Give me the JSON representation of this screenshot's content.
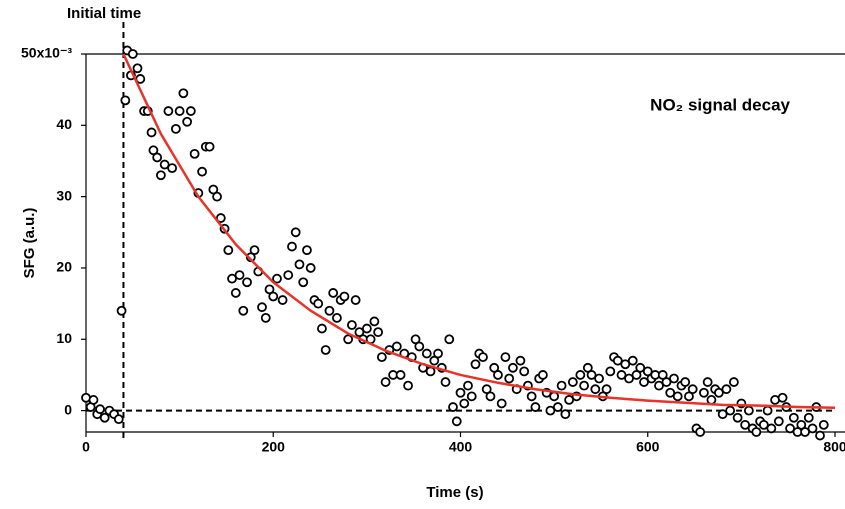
{
  "chart_data": {
    "type": "scatter",
    "xlabel": "Time (s)",
    "ylabel": "SFG (a.u.)",
    "annotations": [
      {
        "text": "Initial time",
        "x": 40
      },
      {
        "text": "NO₂ signal decay"
      }
    ],
    "hline": 0,
    "xlim": [
      0,
      800
    ],
    "ylim": [
      -3,
      50
    ],
    "xticks": [
      0,
      200,
      400,
      600,
      800
    ],
    "yticks": [
      0,
      10,
      20,
      30,
      40,
      {
        "value": 50,
        "label": "50x10⁻³"
      }
    ],
    "series": [
      {
        "type": "scatter",
        "color": "#000000",
        "x": [
          0,
          5,
          8,
          12,
          15,
          20,
          25,
          30,
          35,
          38,
          42,
          44,
          48,
          50,
          55,
          58,
          62,
          66,
          70,
          72,
          76,
          80,
          84,
          88,
          92,
          96,
          100,
          104,
          108,
          112,
          116,
          120,
          124,
          128,
          132,
          136,
          140,
          144,
          148,
          152,
          156,
          160,
          164,
          168,
          172,
          176,
          180,
          184,
          188,
          192,
          196,
          200,
          204,
          210,
          216,
          220,
          224,
          228,
          232,
          236,
          240,
          244,
          248,
          252,
          256,
          260,
          264,
          268,
          272,
          276,
          280,
          284,
          288,
          292,
          296,
          300,
          304,
          308,
          312,
          316,
          320,
          324,
          328,
          332,
          336,
          340,
          344,
          348,
          352,
          356,
          360,
          364,
          368,
          372,
          376,
          380,
          384,
          388,
          392,
          396,
          400,
          404,
          408,
          412,
          416,
          420,
          424,
          428,
          432,
          436,
          440,
          444,
          448,
          452,
          456,
          460,
          464,
          468,
          472,
          476,
          480,
          484,
          488,
          492,
          496,
          500,
          504,
          508,
          512,
          516,
          520,
          524,
          528,
          532,
          536,
          540,
          544,
          548,
          552,
          556,
          560,
          564,
          568,
          572,
          576,
          580,
          584,
          588,
          592,
          596,
          600,
          604,
          608,
          612,
          616,
          620,
          624,
          628,
          632,
          636,
          640,
          644,
          648,
          652,
          656,
          660,
          664,
          668,
          672,
          676,
          680,
          684,
          688,
          692,
          696,
          700,
          704,
          708,
          712,
          716,
          720,
          724,
          728,
          732,
          736,
          740,
          744,
          748,
          752,
          756,
          760,
          764,
          768,
          772,
          776,
          780,
          784,
          788
        ],
        "values": [
          1.8,
          0.5,
          1.5,
          -0.5,
          0.2,
          -1,
          0,
          -0.5,
          -1.2,
          14,
          43.5,
          50.5,
          47,
          50,
          48,
          46.5,
          42,
          42,
          39,
          36.5,
          35.5,
          33,
          34.5,
          42,
          34,
          39.5,
          42,
          44.5,
          40.5,
          42,
          36,
          30.5,
          33.5,
          37,
          37,
          31,
          30,
          27,
          25.5,
          22.5,
          18.5,
          16.5,
          19,
          14,
          18,
          21.5,
          22.5,
          19.5,
          14.5,
          13,
          17,
          16,
          18.5,
          15.5,
          19,
          23,
          25,
          20.5,
          18,
          22.5,
          20,
          15.5,
          15,
          11.5,
          8.5,
          14,
          16.5,
          13,
          15.5,
          16,
          10,
          12,
          15.5,
          11,
          10,
          11.5,
          10,
          12.5,
          11,
          7.5,
          4,
          8.5,
          5,
          9,
          5,
          8,
          3.5,
          7.5,
          10,
          9,
          6,
          8,
          5.5,
          7,
          8,
          6,
          4,
          10,
          0.5,
          -1.5,
          2.5,
          1,
          3.5,
          2,
          6.5,
          8,
          7.5,
          3,
          2,
          6,
          5,
          1,
          7.5,
          4.5,
          6,
          3,
          7,
          5.5,
          3.5,
          2,
          0.5,
          4.5,
          5,
          2.5,
          0,
          2,
          0.5,
          3.5,
          -0.5,
          1.5,
          4,
          2,
          5,
          3.5,
          6,
          5,
          3,
          4.5,
          2,
          3,
          5.5,
          7.5,
          7,
          5,
          6.5,
          4.5,
          7,
          5,
          6,
          4,
          5.5,
          4.5,
          5,
          3.5,
          5,
          4,
          2.5,
          4.5,
          2,
          3.5,
          4,
          2,
          3,
          -2.5,
          -3,
          2.5,
          4,
          1.5,
          3,
          2.5,
          -0.5,
          3,
          0,
          4,
          -1,
          1,
          -2,
          0,
          -2.5,
          -3,
          -1.5,
          -2,
          0,
          -2.5,
          1.5,
          -1.5,
          1.8,
          0.5,
          -2.5,
          -1,
          -3,
          -2,
          -3,
          -1,
          -2.5,
          0.5,
          -3.5,
          -2
        ]
      },
      {
        "type": "line",
        "color": "#e8332a",
        "x": [
          40,
          80,
          120,
          160,
          200,
          240,
          280,
          320,
          360,
          400,
          440,
          480,
          520,
          560,
          600,
          640,
          680,
          720,
          760,
          800
        ],
        "values": [
          50,
          38.8,
          30.0,
          23.3,
          18.0,
          14.0,
          10.8,
          8.4,
          6.5,
          5.0,
          3.9,
          3.0,
          2.3,
          1.8,
          1.4,
          1.1,
          0.8,
          0.7,
          0.5,
          0.4
        ]
      }
    ]
  }
}
